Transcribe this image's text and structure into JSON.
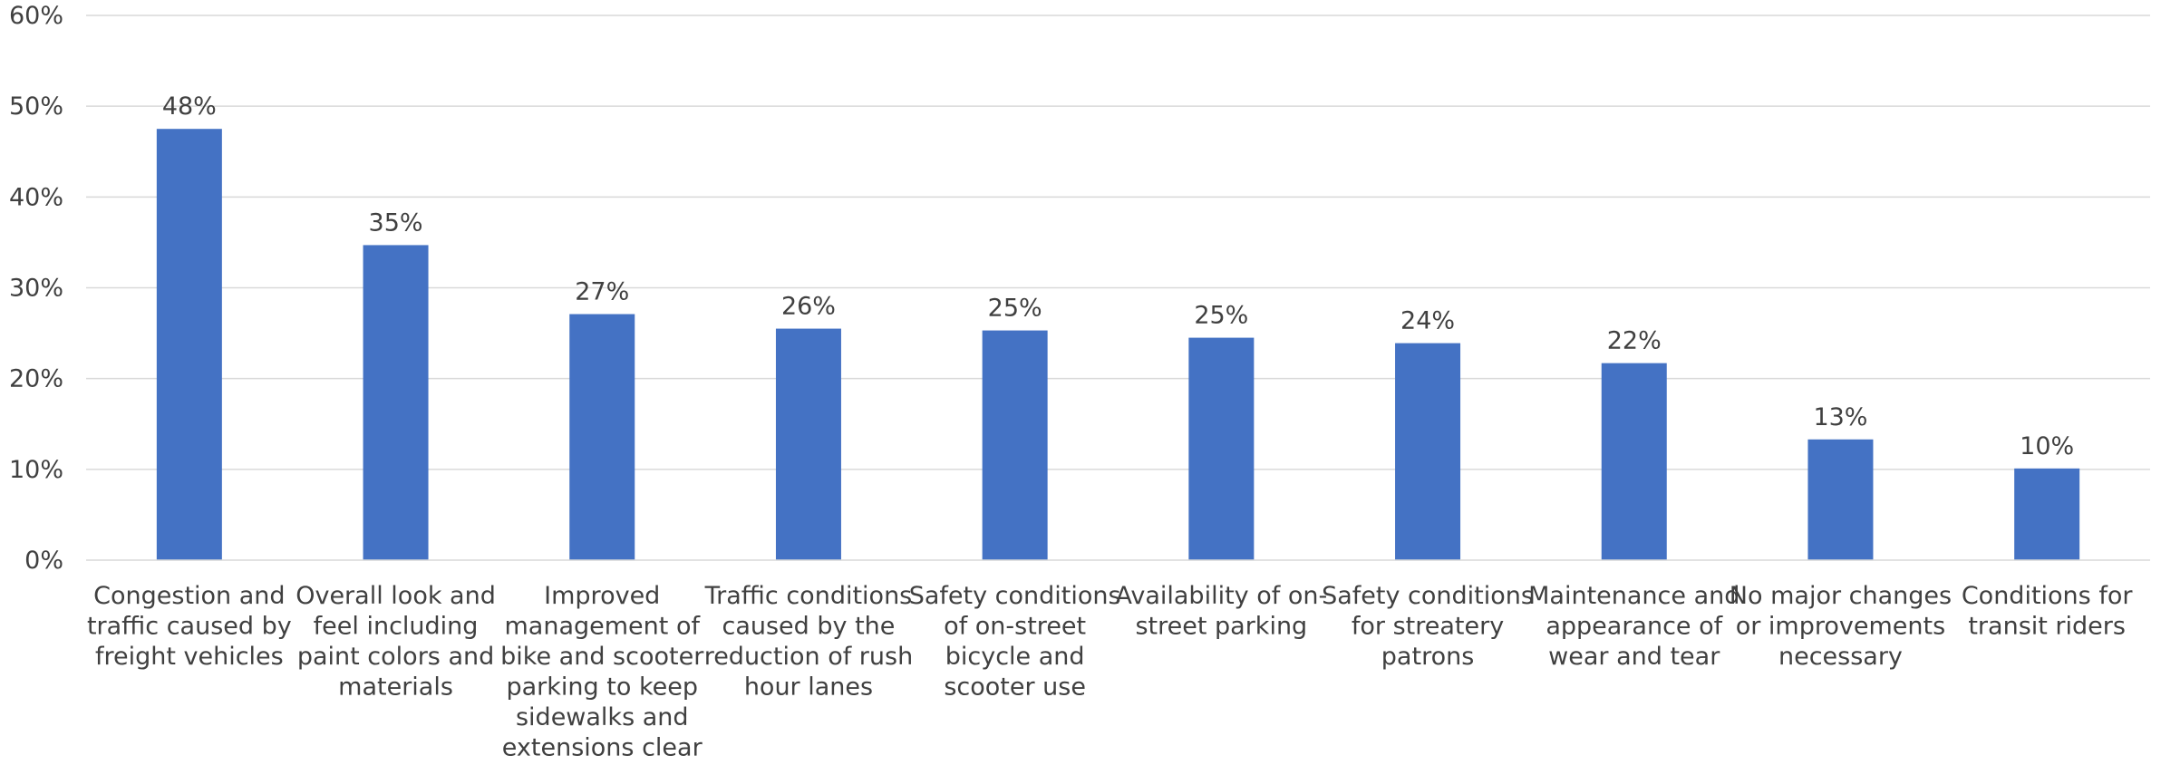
{
  "chart_data": {
    "type": "bar",
    "title": "",
    "xlabel": "",
    "ylabel": "",
    "ylim": [
      0,
      60
    ],
    "ytick_labels": [
      "0%",
      "10%",
      "20%",
      "30%",
      "40%",
      "50%",
      "60%"
    ],
    "ytick_values": [
      0,
      10,
      20,
      30,
      40,
      50,
      60
    ],
    "grid": true,
    "legend": "none",
    "bar_color": "#4472C4",
    "categories": [
      [
        "Congestion and",
        "traffic caused by",
        "freight vehicles"
      ],
      [
        "Overall look and",
        "feel including",
        "paint colors and",
        "materials"
      ],
      [
        "Improved",
        "management of",
        "bike and scooter",
        "parking to keep",
        "sidewalks and",
        "extensions clear"
      ],
      [
        "Traffic conditions",
        "caused by the",
        "reduction of rush",
        "hour lanes"
      ],
      [
        "Safety conditions",
        "of on-street",
        "bicycle and",
        "scooter use"
      ],
      [
        "Availability of on-",
        "street parking"
      ],
      [
        "Safety conditions",
        "for streatery",
        "patrons"
      ],
      [
        "Maintenance and",
        "appearance of",
        "wear and tear"
      ],
      [
        "No major changes",
        "or improvements",
        "necessary"
      ],
      [
        "Conditions for",
        "transit riders"
      ]
    ],
    "values": [
      47.5,
      34.7,
      27.1,
      25.5,
      25.3,
      24.5,
      23.9,
      21.7,
      13.3,
      10.1
    ],
    "data_labels": [
      "48%",
      "35%",
      "27%",
      "26%",
      "25%",
      "25%",
      "24%",
      "22%",
      "13%",
      "10%"
    ]
  }
}
